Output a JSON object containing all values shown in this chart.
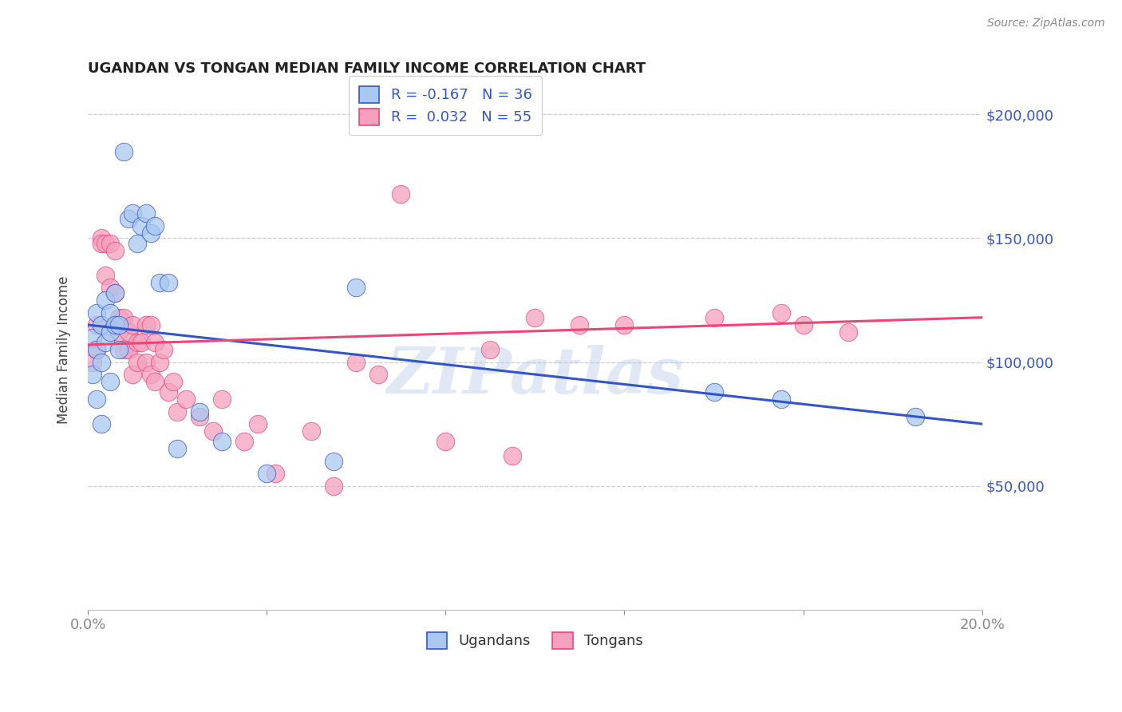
{
  "title": "UGANDAN VS TONGAN MEDIAN FAMILY INCOME CORRELATION CHART",
  "source": "Source: ZipAtlas.com",
  "ylabel": "Median Family Income",
  "x_min": 0.0,
  "x_max": 0.2,
  "y_min": 0,
  "y_max": 210000,
  "y_ticks": [
    50000,
    100000,
    150000,
    200000
  ],
  "y_tick_labels": [
    "$50,000",
    "$100,000",
    "$150,000",
    "$200,000"
  ],
  "x_ticks": [
    0.0,
    0.04,
    0.08,
    0.12,
    0.16,
    0.2
  ],
  "x_tick_labels": [
    "0.0%",
    "",
    "",
    "",
    "",
    "20.0%"
  ],
  "ugandan_color": "#A8C8F0",
  "tongan_color": "#F5A0BE",
  "ugandan_line_color": "#3355CC",
  "tongan_line_color": "#EE4477",
  "background_color": "#ffffff",
  "watermark": "ZIPatlas",
  "ugandan_R": -0.167,
  "ugandan_N": 36,
  "tongan_R": 0.032,
  "tongan_N": 55,
  "ugandan_x": [
    0.001,
    0.001,
    0.002,
    0.002,
    0.002,
    0.003,
    0.003,
    0.003,
    0.004,
    0.004,
    0.005,
    0.005,
    0.005,
    0.006,
    0.006,
    0.007,
    0.007,
    0.008,
    0.009,
    0.01,
    0.011,
    0.012,
    0.013,
    0.014,
    0.015,
    0.016,
    0.018,
    0.02,
    0.025,
    0.03,
    0.04,
    0.055,
    0.06,
    0.14,
    0.155,
    0.185
  ],
  "ugandan_y": [
    110000,
    95000,
    120000,
    105000,
    85000,
    115000,
    100000,
    75000,
    125000,
    108000,
    120000,
    112000,
    92000,
    128000,
    115000,
    115000,
    105000,
    185000,
    158000,
    160000,
    148000,
    155000,
    160000,
    152000,
    155000,
    132000,
    132000,
    65000,
    80000,
    68000,
    55000,
    60000,
    130000,
    88000,
    85000,
    78000
  ],
  "tongan_x": [
    0.001,
    0.002,
    0.002,
    0.003,
    0.003,
    0.004,
    0.004,
    0.005,
    0.005,
    0.006,
    0.006,
    0.007,
    0.007,
    0.008,
    0.008,
    0.009,
    0.009,
    0.01,
    0.01,
    0.011,
    0.011,
    0.012,
    0.013,
    0.013,
    0.014,
    0.014,
    0.015,
    0.015,
    0.016,
    0.017,
    0.018,
    0.019,
    0.02,
    0.022,
    0.025,
    0.028,
    0.03,
    0.035,
    0.038,
    0.042,
    0.05,
    0.055,
    0.06,
    0.065,
    0.07,
    0.08,
    0.09,
    0.095,
    0.1,
    0.11,
    0.12,
    0.14,
    0.155,
    0.16,
    0.17
  ],
  "tongan_y": [
    100000,
    115000,
    105000,
    150000,
    148000,
    148000,
    135000,
    148000,
    130000,
    145000,
    128000,
    118000,
    112000,
    118000,
    105000,
    112000,
    105000,
    115000,
    95000,
    100000,
    108000,
    108000,
    115000,
    100000,
    115000,
    95000,
    108000,
    92000,
    100000,
    105000,
    88000,
    92000,
    80000,
    85000,
    78000,
    72000,
    85000,
    68000,
    75000,
    55000,
    72000,
    50000,
    100000,
    95000,
    168000,
    68000,
    105000,
    62000,
    118000,
    115000,
    115000,
    118000,
    120000,
    115000,
    112000
  ]
}
